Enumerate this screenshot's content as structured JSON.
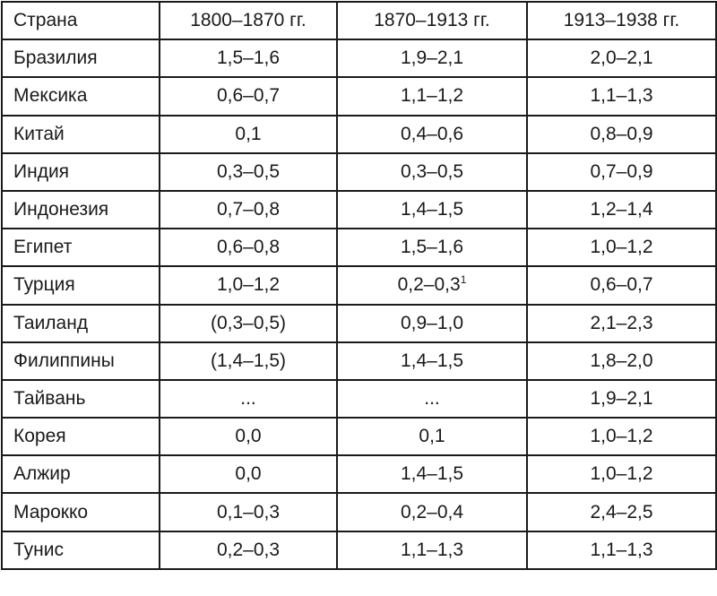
{
  "table": {
    "headers": [
      "Страна",
      "1800–1870 гг.",
      "1870–1913 гг.",
      "1913–1938 гг."
    ],
    "rows": [
      [
        "Бразилия",
        "1,5–1,6",
        "1,9–2,1",
        "2,0–2,1"
      ],
      [
        "Мексика",
        "0,6–0,7",
        "1,1–1,2",
        "1,1–1,3"
      ],
      [
        "Китай",
        "0,1",
        "0,4–0,6",
        "0,8–0,9"
      ],
      [
        "Индия",
        "0,3–0,5",
        "0,3–0,5",
        "0,7–0,9"
      ],
      [
        "Индонезия",
        "0,7–0,8",
        "1,4–1,5",
        "1,2–1,4"
      ],
      [
        "Египет",
        "0,6–0,8",
        "1,5–1,6",
        "1,0–1,2"
      ],
      [
        "Турция",
        "1,0–1,2",
        "0,2–0,3",
        "0,6–0,7"
      ],
      [
        "Таиланд",
        "(0,3–0,5)",
        "0,9–1,0",
        "2,1–2,3"
      ],
      [
        "Филиппины",
        "(1,4–1,5)",
        "1,4–1,5",
        "1,8–2,0"
      ],
      [
        "Тайвань",
        "...",
        "...",
        "1,9–2,1"
      ],
      [
        "Корея",
        "0,0",
        "0,1",
        "1,0–1,2"
      ],
      [
        "Алжир",
        "0,0",
        "1,4–1,5",
        "1,0–1,2"
      ],
      [
        "Марокко",
        "0,1–0,3",
        "0,2–0,4",
        "2,4–2,5"
      ],
      [
        "Тунис",
        "0,2–0,3",
        "1,1–1,3",
        "1,1–1,3"
      ]
    ],
    "footnotes": [
      {
        "row": 6,
        "col": 2,
        "mark": "1"
      }
    ]
  }
}
